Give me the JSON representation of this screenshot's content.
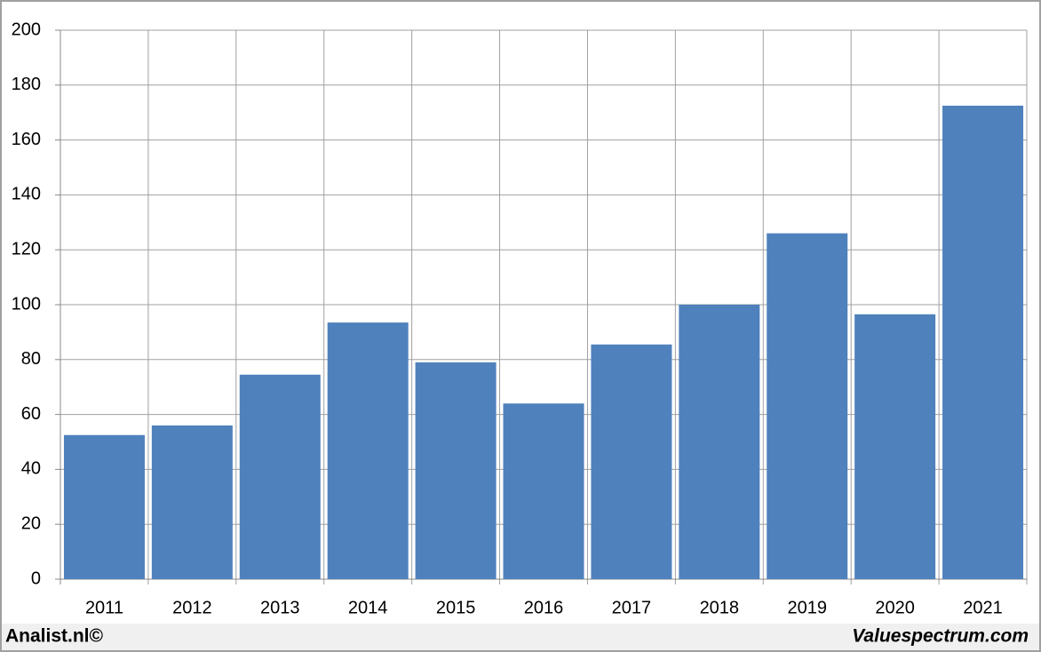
{
  "chart_data": {
    "type": "bar",
    "categories": [
      "2011",
      "2012",
      "2013",
      "2014",
      "2015",
      "2016",
      "2017",
      "2018",
      "2019",
      "2020",
      "2021"
    ],
    "values": [
      52.5,
      56,
      74.5,
      93.5,
      79,
      64,
      85.5,
      100,
      126,
      96.5,
      172.5
    ],
    "color": "#4f81bd",
    "ylim": [
      0,
      200
    ],
    "yticks": [
      0,
      20,
      40,
      60,
      80,
      100,
      120,
      140,
      160,
      180,
      200
    ],
    "grid": true
  },
  "footer": {
    "left": "Analist.nl©",
    "right": "Valuespectrum.com"
  }
}
